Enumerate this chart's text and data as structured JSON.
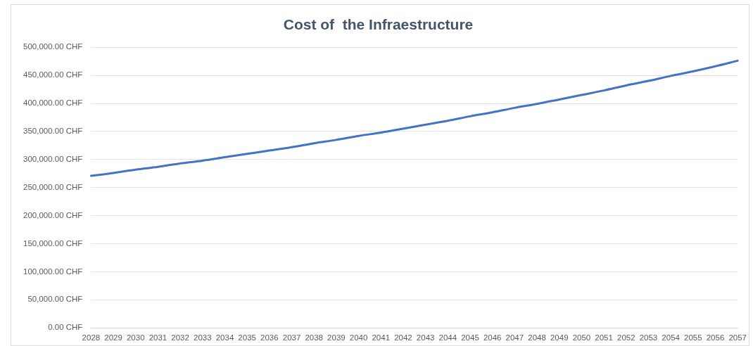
{
  "chart_data": {
    "type": "line",
    "title": "Cost of  the Infraestructure",
    "categories": [
      "2028",
      "2029",
      "2030",
      "2031",
      "2032",
      "2033",
      "2034",
      "2035",
      "2036",
      "2037",
      "2038",
      "2039",
      "2040",
      "2041",
      "2042",
      "2043",
      "2044",
      "2045",
      "2046",
      "2047",
      "2048",
      "2049",
      "2050",
      "2051",
      "2052",
      "2053",
      "2054",
      "2055",
      "2056",
      "2057"
    ],
    "series": [
      {
        "color": "#4472c4",
        "values": [
          271000,
          276000,
          282000,
          287000,
          293000,
          298000,
          304000,
          310000,
          316000,
          322000,
          329000,
          335000,
          342000,
          348000,
          355000,
          362000,
          369000,
          377000,
          384000,
          392000,
          399000,
          407000,
          415000,
          423000,
          432000,
          440000,
          449000,
          457000,
          466000,
          476000
        ]
      }
    ],
    "ylim": [
      0,
      500000
    ],
    "yticks": [
      {
        "value": 0,
        "label": "0.00 CHF"
      },
      {
        "value": 50000,
        "label": "50,000.00 CHF"
      },
      {
        "value": 100000,
        "label": "100,000.00 CHF"
      },
      {
        "value": 150000,
        "label": "150,000.00 CHF"
      },
      {
        "value": 200000,
        "label": "200,000.00 CHF"
      },
      {
        "value": 250000,
        "label": "250,000.00 CHF"
      },
      {
        "value": 300000,
        "label": "300,000.00 CHF"
      },
      {
        "value": 350000,
        "label": "350,000.00 CHF"
      },
      {
        "value": 400000,
        "label": "400,000.00 CHF"
      },
      {
        "value": 450000,
        "label": "450,000.00 CHF"
      },
      {
        "value": 500000,
        "label": "500,000.00 CHF"
      }
    ],
    "grid": "y",
    "legend": false,
    "marker": "none",
    "line_style": "solid"
  }
}
